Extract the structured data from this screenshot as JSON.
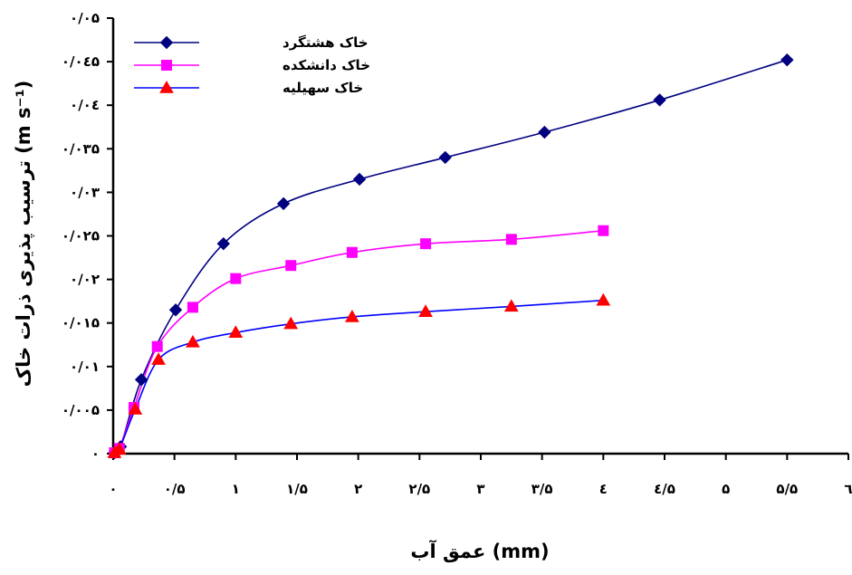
{
  "chart_data": {
    "type": "line",
    "xlabel": "عمق آب (mm)",
    "ylabel": "ترسیب پذیری ذرات خاک (m s⁻¹)",
    "xlim": [
      0,
      6
    ],
    "ylim": [
      0,
      0.05
    ],
    "x_ticks": [
      {
        "value": 0,
        "label": "۰"
      },
      {
        "value": 0.5,
        "label": "۰/۵"
      },
      {
        "value": 1,
        "label": "۱"
      },
      {
        "value": 1.5,
        "label": "۱/۵"
      },
      {
        "value": 2,
        "label": "۲"
      },
      {
        "value": 2.5,
        "label": "۲/۵"
      },
      {
        "value": 3,
        "label": "۳"
      },
      {
        "value": 3.5,
        "label": "۳/۵"
      },
      {
        "value": 4,
        "label": "٤"
      },
      {
        "value": 4.5,
        "label": "٤/۵"
      },
      {
        "value": 5,
        "label": "۵"
      },
      {
        "value": 5.5,
        "label": "۵/۵"
      },
      {
        "value": 6,
        "label": "٦"
      }
    ],
    "y_ticks": [
      {
        "value": 0,
        "label": "۰"
      },
      {
        "value": 0.005,
        "label": "۰/۰۰۵"
      },
      {
        "value": 0.01,
        "label": "۰/۰۱"
      },
      {
        "value": 0.015,
        "label": "۰/۰۱۵"
      },
      {
        "value": 0.02,
        "label": "۰/۰۲"
      },
      {
        "value": 0.025,
        "label": "۰/۰۲۵"
      },
      {
        "value": 0.03,
        "label": "۰/۰۳"
      },
      {
        "value": 0.035,
        "label": "۰/۰۳۵"
      },
      {
        "value": 0.04,
        "label": "۰/۰٤"
      },
      {
        "value": 0.045,
        "label": "۰/۰٤۵"
      },
      {
        "value": 0.05,
        "label": "۰/۰۵"
      }
    ],
    "legend_position": "top-left",
    "grid": false,
    "series": [
      {
        "name": "خاک هشتگرد",
        "color": "#000080",
        "marker": "diamond",
        "marker_color": "#000080",
        "x": [
          0.01,
          0.06,
          0.23,
          0.51,
          0.9,
          1.39,
          2.01,
          2.71,
          3.52,
          4.46,
          5.5
        ],
        "y": [
          0.0001,
          0.0008,
          0.0085,
          0.0165,
          0.0241,
          0.0287,
          0.0315,
          0.034,
          0.0369,
          0.0406,
          0.0452
        ]
      },
      {
        "name": "خاک دانشکده",
        "color": "#ff00ff",
        "marker": "square",
        "marker_color": "#ff00ff",
        "x": [
          0.01,
          0.05,
          0.17,
          0.36,
          0.65,
          1.0,
          1.45,
          1.95,
          2.55,
          3.25,
          4.0
        ],
        "y": [
          0.0001,
          0.0006,
          0.0053,
          0.0123,
          0.0168,
          0.0201,
          0.0216,
          0.0231,
          0.0241,
          0.0246,
          0.0256
        ]
      },
      {
        "name": "خاک سهیلیه",
        "color": "#0000ff",
        "marker": "triangle",
        "marker_color": "#ff0000",
        "x": [
          0.01,
          0.05,
          0.18,
          0.37,
          0.65,
          1.0,
          1.45,
          1.95,
          2.55,
          3.25,
          4.0
        ],
        "y": [
          0.0001,
          0.0005,
          0.0051,
          0.0108,
          0.0128,
          0.0139,
          0.0149,
          0.0157,
          0.0163,
          0.0169,
          0.0176
        ]
      }
    ]
  }
}
